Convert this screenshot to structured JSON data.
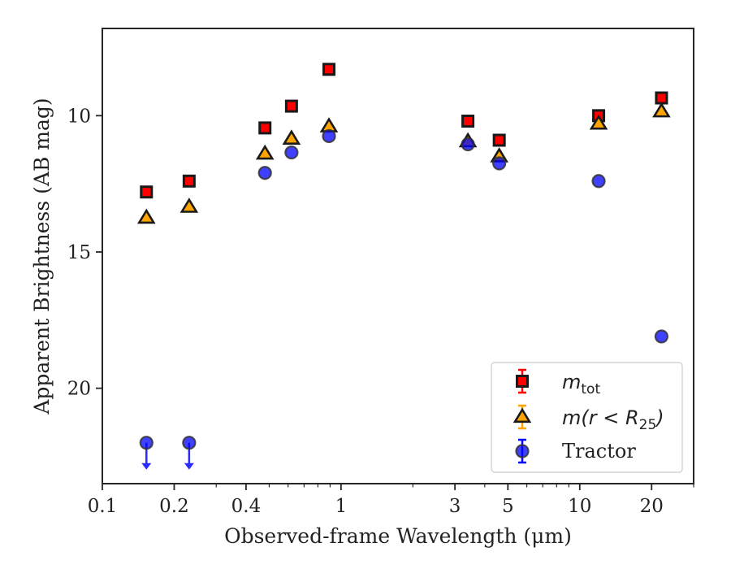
{
  "chart_data": {
    "type": "scatter",
    "xlabel": "Observed-frame Wavelength (μm)",
    "ylabel": "Apparent Brightness (AB mag)",
    "xscale": "log",
    "xlim": [
      0.1,
      30
    ],
    "ylim": [
      23.5,
      6.8
    ],
    "y_inverted": true,
    "grid": false,
    "legend_position": "lower-right",
    "x_ticks": [
      0.1,
      0.2,
      0.4,
      1,
      3,
      5,
      10,
      20
    ],
    "x_tick_labels": [
      "0.1",
      "0.2",
      "0.4",
      "1",
      "3",
      "5",
      "10",
      "20"
    ],
    "y_ticks": [
      10,
      15,
      20
    ],
    "y_tick_labels": [
      "10",
      "15",
      "20"
    ],
    "series": [
      {
        "name_main": "m",
        "name_sub": "tot",
        "marker": "square",
        "color": "#ff0000",
        "edge_color": "#1a1a1a",
        "x": [
          0.153,
          0.231,
          0.48,
          0.62,
          0.89,
          3.4,
          4.6,
          12.0,
          22.0
        ],
        "y": [
          12.8,
          12.4,
          10.45,
          9.65,
          8.3,
          10.2,
          10.9,
          10.0,
          9.35
        ]
      },
      {
        "name_main": "m(r < R",
        "name_sub": "25",
        "name_tail": ")",
        "marker": "triangle",
        "color": "#ffa500",
        "edge_color": "#1a1a1a",
        "x": [
          0.153,
          0.231,
          0.48,
          0.62,
          0.89,
          3.4,
          4.6,
          12.0,
          22.0
        ],
        "y": [
          13.75,
          13.35,
          11.4,
          10.85,
          10.4,
          10.95,
          11.5,
          10.3,
          9.85
        ]
      },
      {
        "name": "Tractor",
        "marker": "circle",
        "color": "#0000ff",
        "edge_color": "#333333",
        "x": [
          0.48,
          0.62,
          0.89,
          3.4,
          4.6,
          12.0,
          22.0
        ],
        "y": [
          12.1,
          11.35,
          10.75,
          11.05,
          11.75,
          12.4,
          18.1
        ]
      }
    ],
    "upper_limits": {
      "color": "#2a2aff",
      "x": [
        0.153,
        0.231
      ],
      "y": [
        22.0,
        22.0
      ]
    }
  }
}
